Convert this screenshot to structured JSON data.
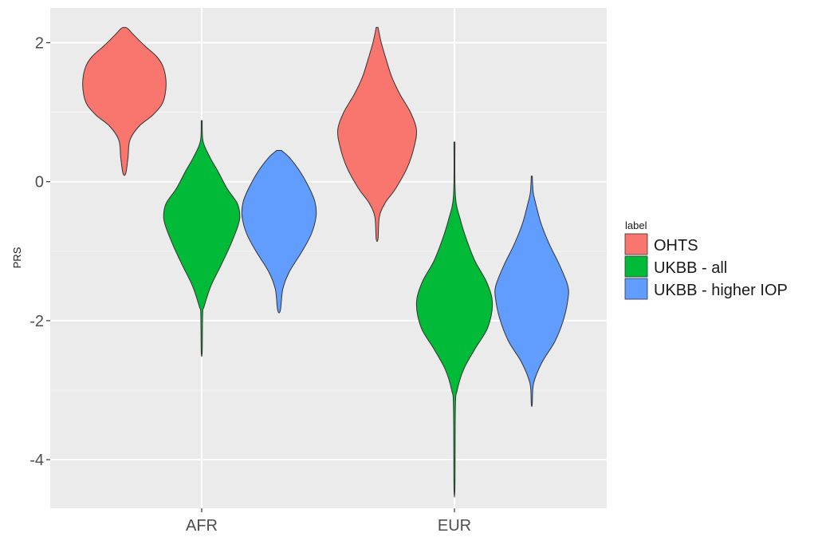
{
  "chart_data": {
    "type": "violin",
    "ylabel": "PRS",
    "xlabel": "",
    "ylim": [
      -4.7,
      2.5
    ],
    "y_ticks": [
      2,
      0,
      -2,
      -4
    ],
    "categories": [
      "AFR",
      "EUR"
    ],
    "grid": true,
    "legend": {
      "title": "label",
      "position": "right",
      "entries": [
        {
          "name": "OHTS",
          "color": "#F8766D"
        },
        {
          "name": "UKBB - all",
          "color": "#00BA38"
        },
        {
          "name": "UKBB - higher IOP",
          "color": "#619CFF"
        }
      ]
    },
    "series": [
      {
        "name": "OHTS",
        "color": "#F8766D",
        "violins": [
          {
            "category": "AFR",
            "min": 0.12,
            "max": 2.22,
            "profile": [
              [
                0.12,
                0.03
              ],
              [
                0.35,
                0.08
              ],
              [
                0.6,
                0.12
              ],
              [
                0.8,
                0.32
              ],
              [
                0.95,
                0.6
              ],
              [
                1.1,
                0.8
              ],
              [
                1.25,
                0.88
              ],
              [
                1.45,
                0.9
              ],
              [
                1.65,
                0.84
              ],
              [
                1.8,
                0.7
              ],
              [
                1.95,
                0.45
              ],
              [
                2.1,
                0.22
              ],
              [
                2.2,
                0.08
              ],
              [
                2.22,
                0.03
              ]
            ]
          },
          {
            "category": "EUR",
            "min": -0.82,
            "max": 2.22,
            "profile": [
              [
                -0.82,
                0.02
              ],
              [
                -0.5,
                0.05
              ],
              [
                -0.3,
                0.18
              ],
              [
                -0.1,
                0.4
              ],
              [
                0.2,
                0.65
              ],
              [
                0.5,
                0.8
              ],
              [
                0.75,
                0.85
              ],
              [
                1.0,
                0.72
              ],
              [
                1.25,
                0.5
              ],
              [
                1.5,
                0.32
              ],
              [
                1.75,
                0.2
              ],
              [
                2.0,
                0.09
              ],
              [
                2.22,
                0.02
              ]
            ]
          }
        ]
      },
      {
        "name": "UKBB - all",
        "color": "#00BA38",
        "violins": [
          {
            "category": "AFR",
            "min": -2.45,
            "max": 0.88,
            "profile": [
              [
                -2.45,
                0.01
              ],
              [
                -1.9,
                0.02
              ],
              [
                -1.8,
                0.05
              ],
              [
                -1.5,
                0.2
              ],
              [
                -1.2,
                0.42
              ],
              [
                -0.9,
                0.63
              ],
              [
                -0.6,
                0.8
              ],
              [
                -0.45,
                0.82
              ],
              [
                -0.3,
                0.76
              ],
              [
                -0.1,
                0.55
              ],
              [
                0.15,
                0.35
              ],
              [
                0.35,
                0.18
              ],
              [
                0.58,
                0.03
              ],
              [
                0.88,
                0.01
              ]
            ]
          },
          {
            "category": "EUR",
            "min": -4.4,
            "max": 0.57,
            "profile": [
              [
                -4.4,
                0.01
              ],
              [
                -3.25,
                0.02
              ],
              [
                -3.0,
                0.06
              ],
              [
                -2.7,
                0.2
              ],
              [
                -2.4,
                0.45
              ],
              [
                -2.1,
                0.72
              ],
              [
                -1.75,
                0.82
              ],
              [
                -1.45,
                0.7
              ],
              [
                -1.15,
                0.45
              ],
              [
                -0.85,
                0.27
              ],
              [
                -0.55,
                0.13
              ],
              [
                -0.2,
                0.02
              ],
              [
                0.57,
                0.01
              ]
            ]
          }
        ]
      },
      {
        "name": "UKBB - higher IOP",
        "color": "#619CFF",
        "violins": [
          {
            "category": "AFR",
            "min": -1.85,
            "max": 0.45,
            "profile": [
              [
                -1.85,
                0.03
              ],
              [
                -1.55,
                0.08
              ],
              [
                -1.3,
                0.22
              ],
              [
                -1.0,
                0.5
              ],
              [
                -0.75,
                0.7
              ],
              [
                -0.5,
                0.8
              ],
              [
                -0.3,
                0.78
              ],
              [
                -0.1,
                0.66
              ],
              [
                0.15,
                0.45
              ],
              [
                0.35,
                0.22
              ],
              [
                0.45,
                0.05
              ]
            ]
          },
          {
            "category": "EUR",
            "min": -3.2,
            "max": 0.08,
            "profile": [
              [
                -3.2,
                0.01
              ],
              [
                -2.9,
                0.04
              ],
              [
                -2.6,
                0.22
              ],
              [
                -2.3,
                0.5
              ],
              [
                -2.0,
                0.68
              ],
              [
                -1.7,
                0.78
              ],
              [
                -1.5,
                0.78
              ],
              [
                -1.2,
                0.6
              ],
              [
                -0.9,
                0.38
              ],
              [
                -0.6,
                0.2
              ],
              [
                -0.3,
                0.08
              ],
              [
                -0.15,
                0.03
              ],
              [
                0.08,
                0.01
              ]
            ]
          }
        ]
      }
    ]
  }
}
